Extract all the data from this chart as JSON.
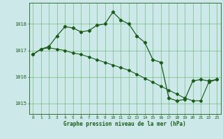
{
  "title": "Graphe pression niveau de la mer (hPa)",
  "background_color": "#cce8e8",
  "grid_color": "#339933",
  "line_color": "#1a5c1a",
  "xlim": [
    -0.5,
    23.5
  ],
  "ylim": [
    1014.6,
    1018.8
  ],
  "yticks": [
    1015,
    1016,
    1017,
    1018
  ],
  "xticks": [
    0,
    1,
    2,
    3,
    4,
    5,
    6,
    7,
    8,
    9,
    10,
    11,
    12,
    13,
    14,
    15,
    16,
    17,
    18,
    19,
    20,
    21,
    22,
    23
  ],
  "series1_x": [
    0,
    1,
    2,
    3,
    4,
    5,
    6,
    7,
    8,
    9,
    10,
    11,
    12,
    13,
    14,
    15,
    16,
    17,
    18,
    19,
    20,
    21,
    22,
    23
  ],
  "series1_y": [
    1016.85,
    1017.05,
    1017.15,
    1017.55,
    1017.9,
    1017.85,
    1017.7,
    1017.75,
    1017.95,
    1018.0,
    1018.45,
    1018.15,
    1018.0,
    1017.55,
    1017.3,
    1016.65,
    1016.55,
    1015.2,
    1015.1,
    1015.15,
    1015.85,
    1015.9,
    1015.85,
    1015.9
  ],
  "series2_x": [
    0,
    1,
    2,
    3,
    4,
    5,
    6,
    7,
    8,
    9,
    10,
    11,
    12,
    13,
    14,
    15,
    16,
    17,
    18,
    19,
    20,
    21,
    22,
    23
  ],
  "series2_y": [
    1016.85,
    1017.05,
    1017.1,
    1017.05,
    1017.0,
    1016.9,
    1016.85,
    1016.75,
    1016.65,
    1016.55,
    1016.45,
    1016.35,
    1016.25,
    1016.1,
    1015.95,
    1015.8,
    1015.65,
    1015.5,
    1015.35,
    1015.2,
    1015.1,
    1015.1,
    1015.8,
    1015.9
  ]
}
